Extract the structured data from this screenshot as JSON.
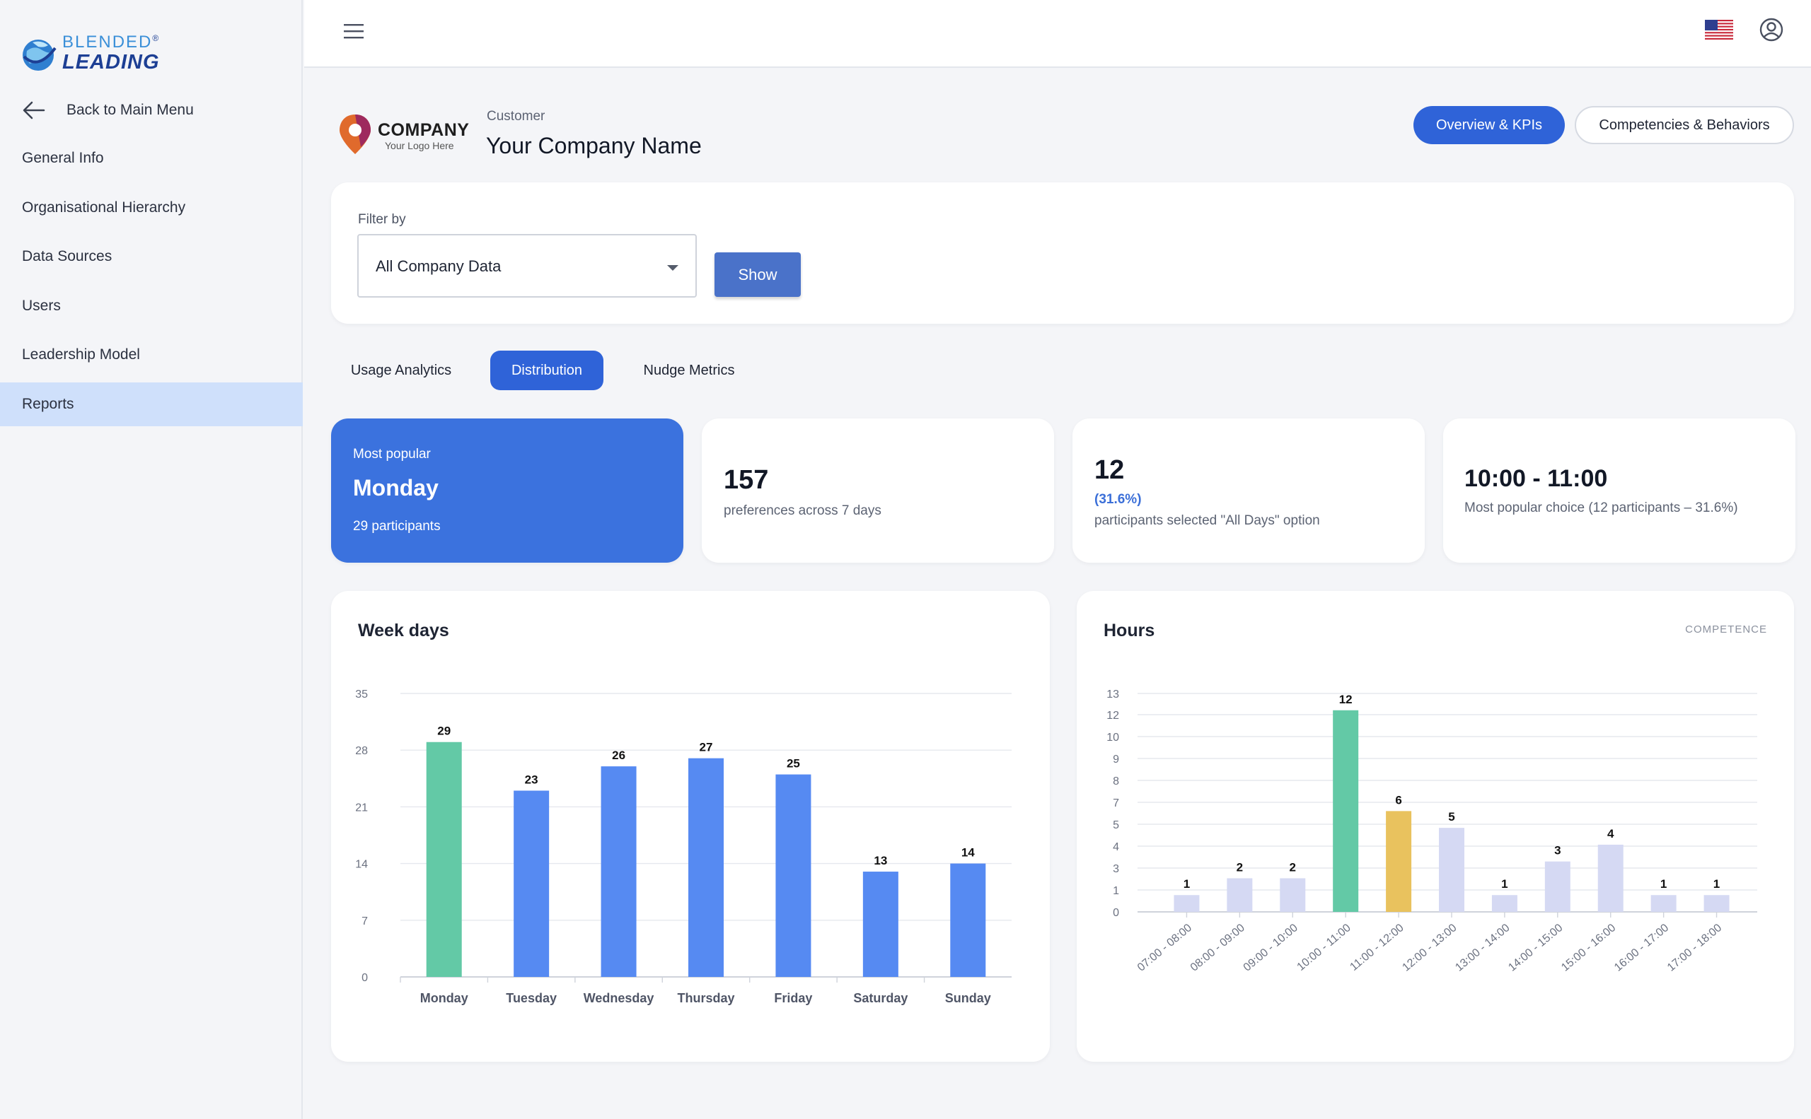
{
  "sidebar": {
    "logo": {
      "line1": "BLENDED",
      "line2": "LEADING",
      "reg": "®"
    },
    "back_label": "Back to Main Menu",
    "items": [
      {
        "label": "General Info",
        "active": false
      },
      {
        "label": "Organisational Hierarchy",
        "active": false
      },
      {
        "label": "Data Sources",
        "active": false
      },
      {
        "label": "Users",
        "active": false
      },
      {
        "label": "Leadership Model",
        "active": false
      },
      {
        "label": "Reports",
        "active": true
      }
    ]
  },
  "header": {
    "company_logo": {
      "name": "COMPANY",
      "tagline": "Your Logo Here"
    },
    "customer_label": "Customer",
    "company_name": "Your Company Name",
    "overview_button": "Overview & KPIs",
    "competencies_button": "Competencies & Behaviors"
  },
  "filter": {
    "label": "Filter by",
    "selected": "All Company Data",
    "show_button": "Show"
  },
  "tabs": [
    {
      "label": "Usage Analytics",
      "active": false
    },
    {
      "label": "Distribution",
      "active": true
    },
    {
      "label": "Nudge Metrics",
      "active": false
    }
  ],
  "kpis": {
    "most_popular": {
      "label": "Most popular",
      "value": "Monday",
      "sub": "29 participants"
    },
    "preferences": {
      "value": "157",
      "sub": "preferences across 7 days"
    },
    "all_days": {
      "value": "12",
      "pct": "(31.6%)",
      "sub": "participants selected \"All Days\" option"
    },
    "popular_hour": {
      "value": "10:00 - 11:00",
      "sub": "Most popular choice (12 participants – 31.6%)"
    }
  },
  "colors": {
    "accent": "#2f63d8",
    "bar_blue": "#568af2",
    "bar_green": "#63c9a6",
    "bar_gold": "#e9c25e",
    "bar_lavender": "#d5d9f3"
  },
  "chart_data": [
    {
      "type": "bar",
      "title": "Week days",
      "categories": [
        "Monday",
        "Tuesday",
        "Wednesday",
        "Thursday",
        "Friday",
        "Saturday",
        "Sunday"
      ],
      "values": [
        29,
        23,
        26,
        27,
        25,
        13,
        14
      ],
      "yticks": [
        0,
        7,
        14,
        21,
        28,
        35
      ],
      "ylim": [
        0,
        35
      ],
      "highlight_index": 0,
      "grid": true,
      "data_labels": true
    },
    {
      "type": "bar",
      "title": "Hours",
      "tag": "COMPETENCE",
      "categories": [
        "07:00 - 08:00",
        "08:00 - 09:00",
        "09:00 - 10:00",
        "10:00 - 11:00",
        "11:00 - 12:00",
        "12:00 - 13:00",
        "13:00 - 14:00",
        "14:00 - 15:00",
        "15:00 - 16:00",
        "16:00 - 17:00",
        "17:00 - 18:00"
      ],
      "values": [
        1,
        2,
        2,
        12,
        6,
        5,
        1,
        3,
        4,
        1,
        1
      ],
      "yticks": [
        0,
        1,
        3,
        4,
        5,
        7,
        8,
        9,
        10,
        12,
        13
      ],
      "ylim": [
        0,
        13
      ],
      "highlight_index": 3,
      "second_index": 4,
      "grid": true,
      "data_labels": true
    }
  ]
}
